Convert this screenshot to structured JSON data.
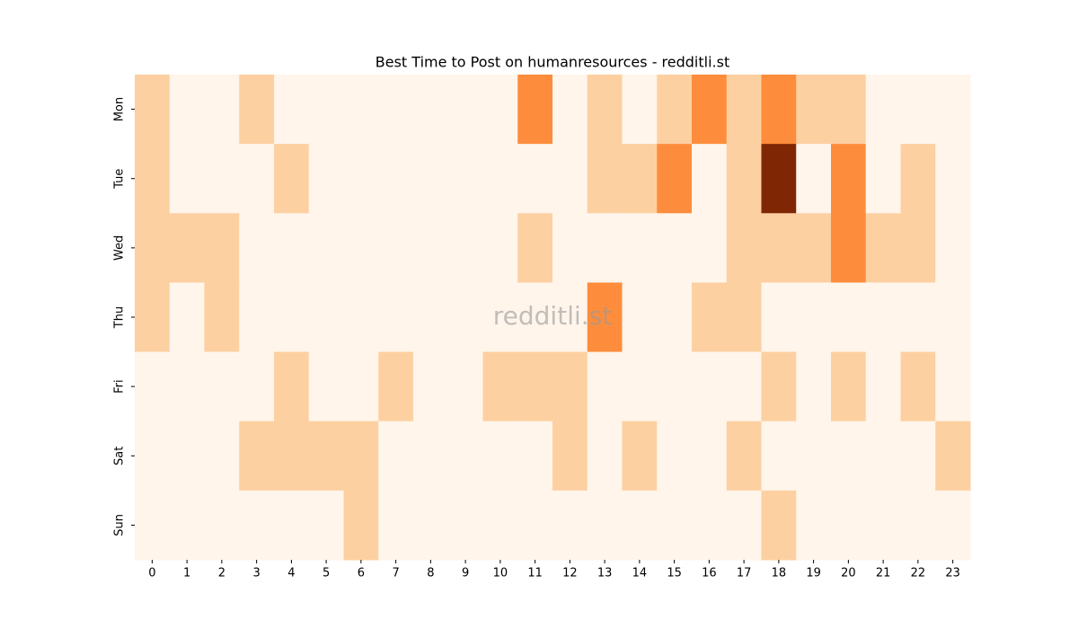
{
  "chart_data": {
    "type": "heatmap",
    "title": "Best Time to Post on humanresources - redditli.st",
    "watermark": "redditli.st",
    "x": [
      0,
      1,
      2,
      3,
      4,
      5,
      6,
      7,
      8,
      9,
      10,
      11,
      12,
      13,
      14,
      15,
      16,
      17,
      18,
      19,
      20,
      21,
      22,
      23
    ],
    "y": [
      "Mon",
      "Tue",
      "Wed",
      "Thu",
      "Fri",
      "Sat",
      "Sun"
    ],
    "values": [
      [
        1,
        0,
        0,
        1,
        0,
        0,
        0,
        0,
        0,
        0,
        0,
        2,
        0,
        1,
        0,
        1,
        2,
        1,
        2,
        1,
        1,
        0,
        0,
        0
      ],
      [
        1,
        0,
        0,
        0,
        1,
        0,
        0,
        0,
        0,
        0,
        0,
        0,
        0,
        1,
        1,
        2,
        0,
        1,
        3,
        0,
        2,
        0,
        1,
        0
      ],
      [
        1,
        1,
        1,
        0,
        0,
        0,
        0,
        0,
        0,
        0,
        0,
        1,
        0,
        0,
        0,
        0,
        0,
        1,
        1,
        1,
        2,
        1,
        1,
        0
      ],
      [
        1,
        0,
        1,
        0,
        0,
        0,
        0,
        0,
        0,
        0,
        0,
        0,
        0,
        2,
        0,
        0,
        1,
        1,
        0,
        0,
        0,
        0,
        0,
        0
      ],
      [
        0,
        0,
        0,
        0,
        1,
        0,
        0,
        1,
        0,
        0,
        1,
        1,
        1,
        0,
        0,
        0,
        0,
        0,
        1,
        0,
        1,
        0,
        1,
        0
      ],
      [
        0,
        0,
        0,
        1,
        1,
        1,
        1,
        0,
        0,
        0,
        0,
        0,
        1,
        0,
        1,
        0,
        0,
        1,
        0,
        0,
        0,
        0,
        0,
        1
      ],
      [
        0,
        0,
        0,
        0,
        0,
        0,
        1,
        0,
        0,
        0,
        0,
        0,
        0,
        0,
        0,
        0,
        0,
        0,
        1,
        0,
        0,
        0,
        0,
        0
      ]
    ],
    "colormap": [
      "#fff5eb",
      "#fdd0a2",
      "#fd8d3c",
      "#7f2704"
    ]
  }
}
